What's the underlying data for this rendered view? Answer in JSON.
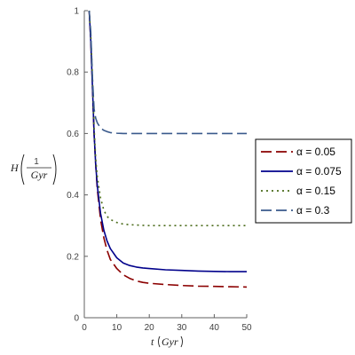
{
  "chart_data": {
    "type": "line",
    "title": "",
    "xlabel": {
      "main": "t",
      "unit": "Gyr"
    },
    "ylabel": {
      "main": "H",
      "numerator": "1",
      "denominator": "Gyr"
    },
    "xlim": [
      0,
      50
    ],
    "ylim": [
      0,
      1
    ],
    "x_ticks": [
      0,
      10,
      20,
      30,
      40,
      50
    ],
    "y_ticks": [
      0,
      0.2,
      0.4,
      0.6,
      0.8,
      1
    ],
    "x_tick_labels": [
      "0",
      "10",
      "20",
      "30",
      "40",
      "50"
    ],
    "y_tick_labels": [
      "0",
      "0.2",
      "0.4",
      "0.6",
      "0.8",
      "1"
    ],
    "grid": false,
    "legend": {
      "placement": "right",
      "border": true
    },
    "series": [
      {
        "name": "α = 0.05",
        "color": "#8b0000",
        "style": "dashed-long",
        "x": [
          1.5,
          2,
          2.5,
          3,
          3.5,
          4,
          5,
          6,
          7,
          8,
          10,
          12,
          14,
          16,
          18,
          20,
          25,
          30,
          35,
          40,
          45,
          50
        ],
        "y": [
          1.0,
          0.9,
          0.75,
          0.6,
          0.5,
          0.42,
          0.32,
          0.26,
          0.22,
          0.19,
          0.16,
          0.14,
          0.128,
          0.12,
          0.115,
          0.112,
          0.108,
          0.105,
          0.103,
          0.102,
          0.101,
          0.1
        ]
      },
      {
        "name": "α = 0.075",
        "color": "#00008b",
        "style": "solid",
        "x": [
          1.5,
          2,
          2.5,
          3,
          3.5,
          4,
          5,
          6,
          7,
          8,
          10,
          12,
          14,
          16,
          18,
          20,
          25,
          30,
          35,
          40,
          45,
          50
        ],
        "y": [
          1.0,
          0.9,
          0.75,
          0.6,
          0.5,
          0.43,
          0.34,
          0.285,
          0.25,
          0.225,
          0.195,
          0.178,
          0.17,
          0.165,
          0.162,
          0.16,
          0.156,
          0.154,
          0.152,
          0.151,
          0.15,
          0.15
        ]
      },
      {
        "name": "α = 0.15",
        "color": "#4a6b1a",
        "style": "dotted",
        "x": [
          1.5,
          2,
          2.5,
          3,
          3.5,
          4,
          5,
          6,
          7,
          8,
          10,
          12,
          14,
          16,
          18,
          20,
          25,
          30,
          35,
          40,
          45,
          50
        ],
        "y": [
          1.0,
          0.92,
          0.78,
          0.62,
          0.52,
          0.46,
          0.39,
          0.35,
          0.33,
          0.32,
          0.31,
          0.305,
          0.303,
          0.302,
          0.301,
          0.3,
          0.3,
          0.3,
          0.3,
          0.3,
          0.3,
          0.3
        ]
      },
      {
        "name": "α = 0.3",
        "color": "#3a5a8c",
        "style": "dashed-long",
        "x": [
          1.5,
          2,
          2.5,
          3,
          3.5,
          4,
          5,
          6,
          7,
          8,
          10,
          12,
          14,
          16,
          18,
          20,
          25,
          30,
          35,
          40,
          45,
          50
        ],
        "y": [
          1.0,
          0.93,
          0.78,
          0.68,
          0.65,
          0.635,
          0.618,
          0.61,
          0.606,
          0.603,
          0.601,
          0.6,
          0.6,
          0.6,
          0.6,
          0.6,
          0.6,
          0.6,
          0.6,
          0.6,
          0.6,
          0.6
        ]
      }
    ]
  }
}
